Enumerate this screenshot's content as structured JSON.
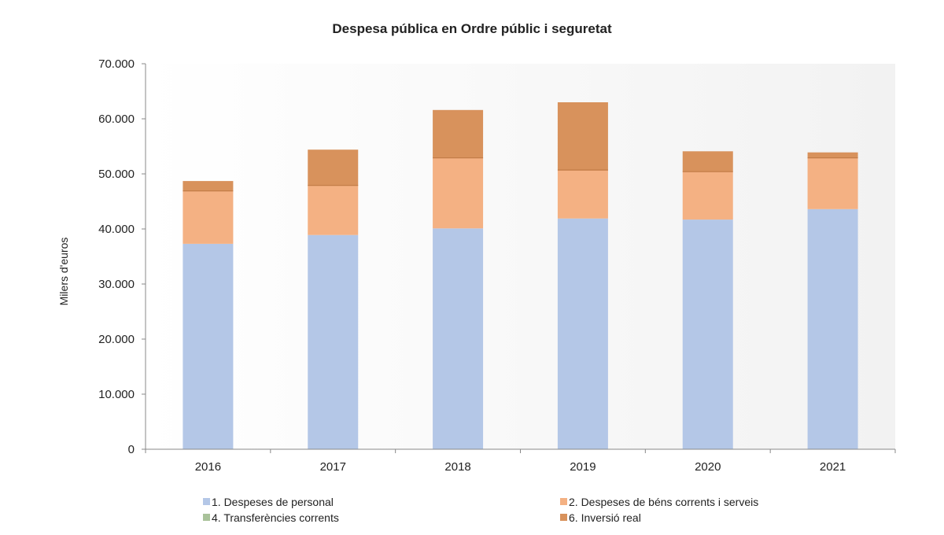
{
  "chart_data": {
    "type": "bar",
    "stacked": true,
    "title": "Despesa pública en Ordre públic i seguretat",
    "xlabel": "",
    "ylabel": "Milers d'euros",
    "ylim": [
      0,
      70000
    ],
    "yticks": [
      0,
      10000,
      20000,
      30000,
      40000,
      50000,
      60000,
      70000
    ],
    "ytick_labels": [
      "0",
      "10.000",
      "20.000",
      "30.000",
      "40.000",
      "50.000",
      "60.000",
      "70.000"
    ],
    "categories": [
      "2016",
      "2017",
      "2018",
      "2019",
      "2020",
      "2021"
    ],
    "grid": false,
    "legend_position": "bottom",
    "series": [
      {
        "name": "1. Despeses de personal",
        "color": "#b4c7e7",
        "values": [
          37300,
          38900,
          40100,
          41900,
          41700,
          43600
        ]
      },
      {
        "name": "2. Despeses de béns corrents i serveis",
        "color": "#f4b183",
        "values": [
          9600,
          9000,
          12800,
          8800,
          8700,
          9300
        ]
      },
      {
        "name": "4. Transferències corrents",
        "color": "#a9c29a",
        "values": [
          0,
          0,
          0,
          0,
          0,
          0
        ]
      },
      {
        "name": "6. Inversió real",
        "color": "#d8925c",
        "values": [
          1800,
          6500,
          8700,
          12300,
          3700,
          1000
        ]
      }
    ]
  }
}
